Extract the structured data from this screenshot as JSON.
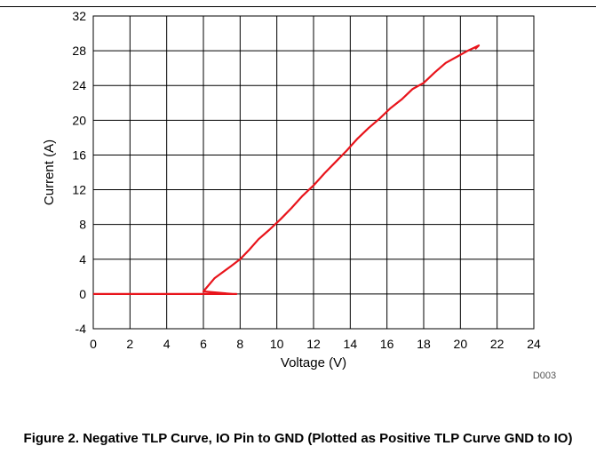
{
  "caption": "Figure 2. Negative TLP Curve, IO Pin to GND (Plotted as Positive TLP Curve GND to IO)",
  "chart_data": {
    "type": "line",
    "xlabel": "Voltage (V)",
    "ylabel": "Current (A)",
    "xlim": [
      0,
      24
    ],
    "ylim": [
      -4,
      32
    ],
    "xticks": [
      0,
      2,
      4,
      6,
      8,
      10,
      12,
      14,
      16,
      18,
      20,
      22,
      24
    ],
    "yticks": [
      -4,
      0,
      4,
      8,
      12,
      16,
      20,
      24,
      28,
      32
    ],
    "grid": true,
    "figure_id": "D003",
    "series": [
      {
        "color": "#e8141b",
        "x": [
          0,
          7.8,
          7.6,
          6.0,
          6.6,
          7.5,
          8.0,
          8.5,
          9.0,
          9.6,
          10.2,
          10.8,
          11.4,
          12.0,
          12.6,
          13.2,
          13.8,
          14.4,
          15.0,
          15.6,
          16.2,
          16.8,
          17.4,
          18.0,
          18.6,
          19.2,
          19.8,
          20.4,
          21.0,
          20.8
        ],
        "y": [
          0,
          0,
          0,
          0.3,
          1.8,
          3.2,
          4.0,
          5.1,
          6.3,
          7.4,
          8.6,
          9.9,
          11.3,
          12.5,
          13.9,
          15.2,
          16.5,
          17.9,
          19.1,
          20.2,
          21.4,
          22.4,
          23.6,
          24.3,
          25.5,
          26.6,
          27.3,
          28.0,
          28.6,
          28.2
        ],
        "values_note_hidden": ""
      }
    ]
  }
}
